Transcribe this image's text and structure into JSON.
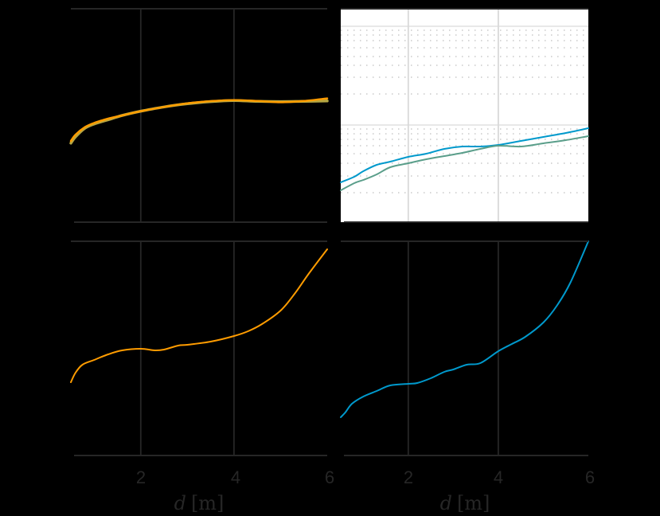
{
  "figure": {
    "background": "#000000",
    "axis_color": "#262626",
    "text_color": "#262626"
  },
  "chart_data": [
    {
      "id": "top-left",
      "type": "line",
      "title": "",
      "xlabel": "",
      "ylabel": "",
      "xlim": [
        0.5,
        6
      ],
      "xticks": [
        2,
        4
      ],
      "xtick_labels": [],
      "yscale": "linear",
      "ylim": [
        0,
        1
      ],
      "background": "#000000",
      "grid": true,
      "grid_color": "#262626",
      "box": {
        "x0": 89,
        "x1": 411,
        "y0": 11,
        "y1": 279
      },
      "series": [
        {
          "name": "series-olive",
          "color": "#B5A642",
          "width": 3.5,
          "x": [
            0.5,
            0.6,
            0.8,
            1.0,
            1.3,
            1.6,
            2.0,
            2.5,
            3.0,
            3.5,
            4.0,
            4.5,
            5.0,
            5.5,
            6.0
          ],
          "y": [
            0.37,
            0.4,
            0.44,
            0.46,
            0.48,
            0.5,
            0.52,
            0.54,
            0.555,
            0.565,
            0.57,
            0.566,
            0.565,
            0.566,
            0.568
          ]
        },
        {
          "name": "series-orange",
          "color": "#FF9C00",
          "width": 2.5,
          "x": [
            0.5,
            0.6,
            0.8,
            1.0,
            1.3,
            1.6,
            2.0,
            2.5,
            3.0,
            3.5,
            4.0,
            4.5,
            5.0,
            5.5,
            6.0
          ],
          "y": [
            0.38,
            0.41,
            0.445,
            0.465,
            0.485,
            0.5,
            0.52,
            0.54,
            0.557,
            0.567,
            0.572,
            0.568,
            0.562,
            0.568,
            0.58
          ]
        }
      ]
    },
    {
      "id": "top-right",
      "type": "line",
      "title": "",
      "xlabel": "",
      "ylabel": "",
      "xlim": [
        0.5,
        6
      ],
      "xticks": [
        2,
        4
      ],
      "xtick_labels": [],
      "yscale": "log",
      "ylim_decades": [
        -0.18,
        1.98
      ],
      "background": "#FFFFFF",
      "grid": true,
      "major_grid_color": "#D9D9D9",
      "minor_grid_style": "dotted",
      "box": {
        "x0": 428,
        "x1": 739,
        "y0": 11,
        "y1": 279
      },
      "major_grid_y": [
        33,
        157
      ],
      "minor_grid_y": [
        38,
        44,
        51,
        60,
        71,
        82,
        97,
        118,
        162,
        168,
        175,
        183,
        193,
        205,
        221,
        242
      ],
      "series": [
        {
          "name": "series-blue",
          "color": "#0099CC",
          "width": 2,
          "x": [
            0.5,
            0.8,
            1.0,
            1.3,
            1.6,
            2.0,
            2.4,
            2.8,
            3.2,
            3.6,
            4.0,
            4.5,
            5.0,
            5.5,
            6.0
          ],
          "py": [
            229,
            222,
            215,
            207,
            203,
            197,
            193,
            187,
            184,
            184,
            182,
            177,
            172,
            167,
            161
          ]
        },
        {
          "name": "series-teal",
          "color": "#5A9E8A",
          "width": 2,
          "x": [
            0.5,
            0.8,
            1.0,
            1.3,
            1.6,
            2.0,
            2.4,
            2.8,
            3.2,
            3.6,
            4.0,
            4.5,
            5.0,
            5.5,
            6.0
          ],
          "py": [
            239,
            230,
            226,
            219,
            210,
            205,
            200,
            196,
            192,
            187,
            183,
            184,
            180,
            176,
            171
          ]
        }
      ]
    },
    {
      "id": "bottom-left",
      "type": "line",
      "title": "",
      "xlabel": "d [m]",
      "ylabel": "",
      "xlim": [
        0.5,
        6
      ],
      "xticks": [
        2,
        4,
        6
      ],
      "xtick_labels": [
        "2",
        "4",
        "6"
      ],
      "yscale": "linear",
      "background": "#000000",
      "grid": true,
      "grid_color": "#262626",
      "box": {
        "x0": 89,
        "x1": 411,
        "y0": 303,
        "y1": 572
      },
      "series": [
        {
          "name": "series-orange",
          "color": "#FF9C00",
          "width": 2,
          "x": [
            0.5,
            0.6,
            0.75,
            1.0,
            1.3,
            1.6,
            2.0,
            2.3,
            2.5,
            2.8,
            3.0,
            3.5,
            4.0,
            4.3,
            4.6,
            5.0,
            5.3,
            5.6,
            6.0
          ],
          "py": [
            480,
            468,
            458,
            452,
            445,
            440,
            438,
            440,
            439,
            434,
            433,
            429,
            422,
            416,
            407,
            390,
            369,
            344,
            313
          ]
        }
      ]
    },
    {
      "id": "bottom-right",
      "type": "line",
      "title": "",
      "xlabel": "d [m]",
      "ylabel": "",
      "xlim": [
        0.5,
        6
      ],
      "xticks": [
        2,
        4,
        6
      ],
      "xtick_labels": [
        "2",
        "4",
        "6"
      ],
      "yscale": "linear",
      "background": "#000000",
      "grid": true,
      "grid_color": "#262626",
      "box": {
        "x0": 428,
        "x1": 739,
        "y0": 303,
        "y1": 572
      },
      "series": [
        {
          "name": "series-blue",
          "color": "#0099CC",
          "width": 2,
          "x": [
            0.5,
            0.6,
            0.75,
            1.0,
            1.3,
            1.6,
            2.0,
            2.2,
            2.5,
            2.8,
            3.0,
            3.3,
            3.6,
            4.0,
            4.3,
            4.6,
            5.0,
            5.3,
            5.6,
            6.0
          ],
          "py": [
            524,
            518,
            507,
            498,
            491,
            484,
            482,
            481,
            475,
            467,
            464,
            458,
            456,
            441,
            432,
            423,
            405,
            384,
            355,
            303
          ]
        }
      ]
    }
  ],
  "labels": {
    "bottom_left_xlabel_var": "d",
    "bottom_left_xlabel_unit": "[m]",
    "bottom_right_xlabel_var": "d",
    "bottom_right_xlabel_unit": "[m]",
    "tick_2": "2",
    "tick_4": "4",
    "tick_6": "6"
  }
}
